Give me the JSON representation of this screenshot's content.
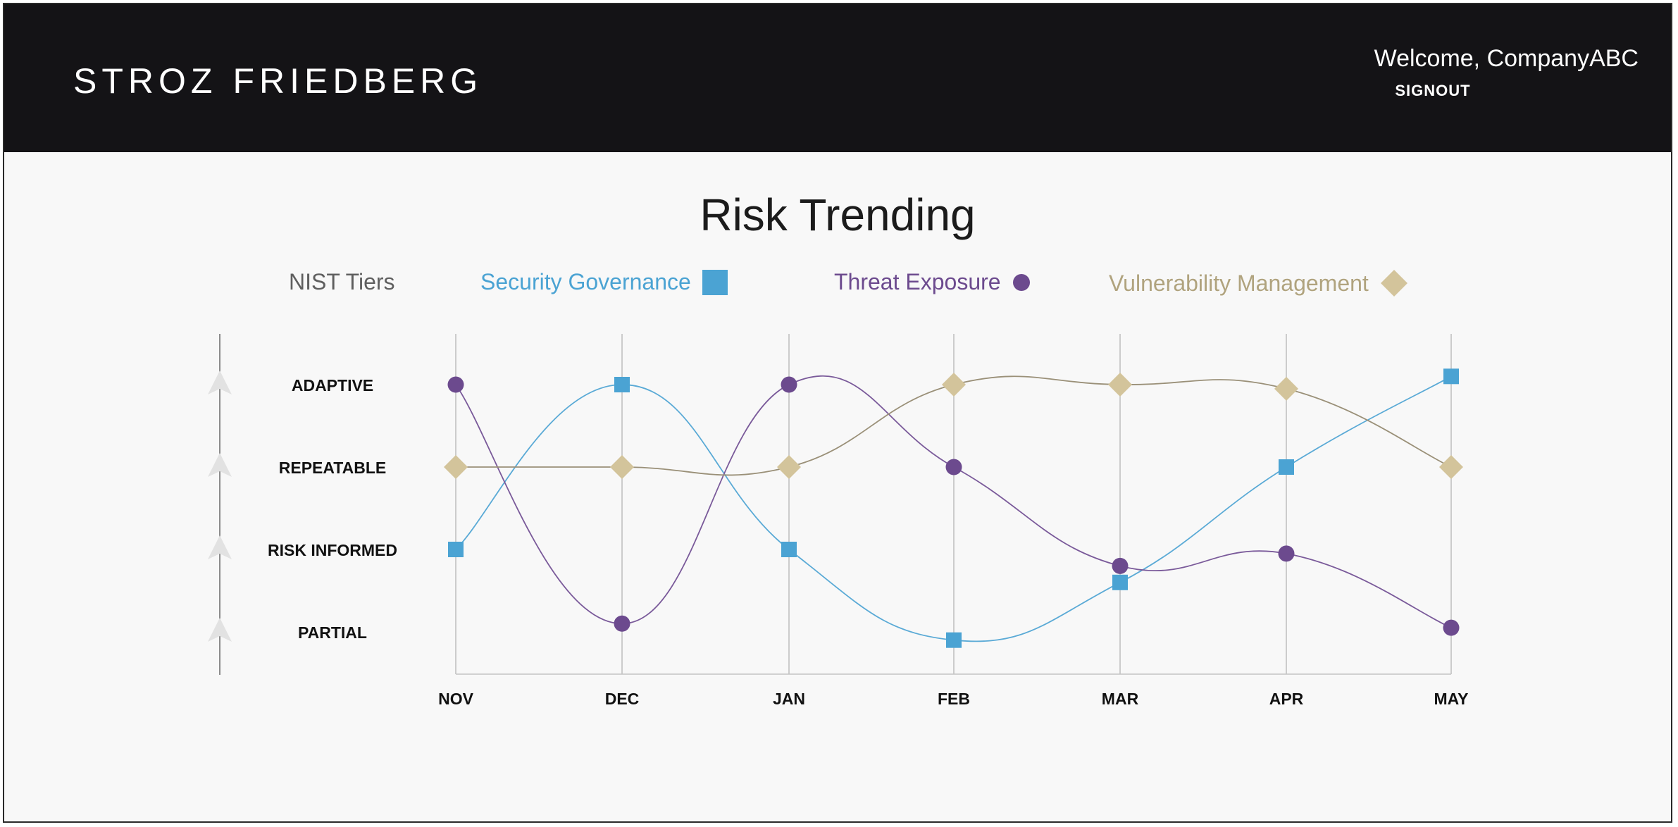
{
  "header": {
    "brand_left": "STROZ",
    "brand_right": "FRIEDBERG",
    "welcome": "Welcome, CompanyABC",
    "signout": "SIGNOUT"
  },
  "chart_data": {
    "type": "line",
    "title": "Risk Trending",
    "y_axis_label": "NIST Tiers",
    "y_categories": [
      "PARTIAL",
      "RISK INFORMED",
      "REPEATABLE",
      "ADAPTIVE"
    ],
    "categories": [
      "NOV",
      "DEC",
      "JAN",
      "FEB",
      "MAR",
      "APR",
      "MAY"
    ],
    "ylim": [
      1,
      4
    ],
    "grid": "vertical",
    "legend_position": "top",
    "series": [
      {
        "name": "Security Governance",
        "color": "#4ba3d3",
        "marker": "square",
        "values": [
          2,
          4,
          2,
          0.9,
          1.6,
          3,
          4.1
        ]
      },
      {
        "name": "Threat Exposure",
        "color": "#6c4a8e",
        "marker": "circle",
        "values": [
          4,
          1.1,
          4,
          3,
          1.8,
          1.95,
          1.05
        ]
      },
      {
        "name": "Vulnerability Management",
        "color": "#d3c49b",
        "marker": "diamond",
        "values": [
          3,
          3,
          3,
          4,
          4,
          3.95,
          3
        ]
      }
    ]
  }
}
